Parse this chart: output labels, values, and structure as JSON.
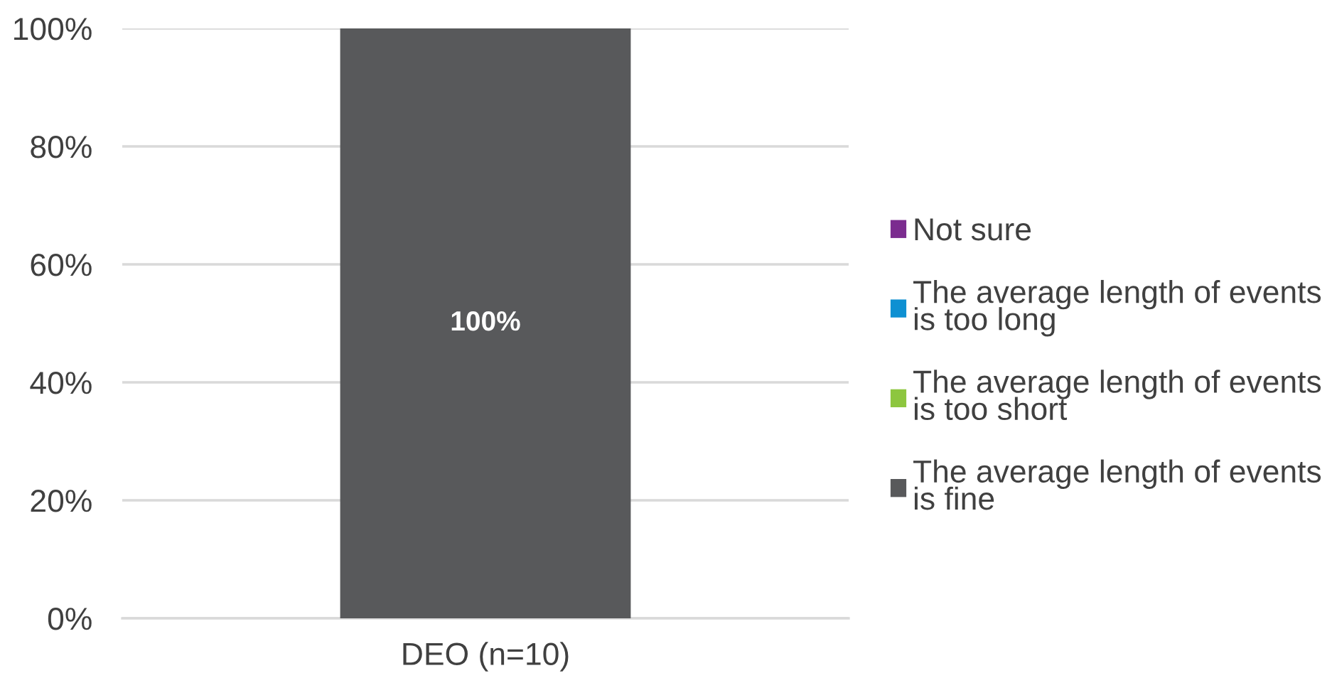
{
  "chart_data": {
    "type": "bar",
    "stacked": true,
    "categories": [
      "DEO (n=10)"
    ],
    "series": [
      {
        "name": "The average length of events\nis fine",
        "color": "#58595b",
        "values": [
          100
        ],
        "value_labels": [
          "100%"
        ]
      },
      {
        "name": "The average length of events\nis too short",
        "color": "#8dc63f",
        "values": [
          0
        ]
      },
      {
        "name": "The average length of events\nis too long",
        "color": "#0e90d2",
        "values": [
          0
        ]
      },
      {
        "name": "Not sure",
        "color": "#7b2c8f",
        "values": [
          0
        ]
      }
    ],
    "ylim": [
      0,
      100
    ],
    "yticks": [
      {
        "value": 0,
        "label": "0%"
      },
      {
        "value": 20,
        "label": "20%"
      },
      {
        "value": 40,
        "label": "40%"
      },
      {
        "value": 60,
        "label": "60%"
      },
      {
        "value": 80,
        "label": "80%"
      },
      {
        "value": 100,
        "label": "100%"
      }
    ],
    "grid": "y",
    "legend": "right"
  }
}
